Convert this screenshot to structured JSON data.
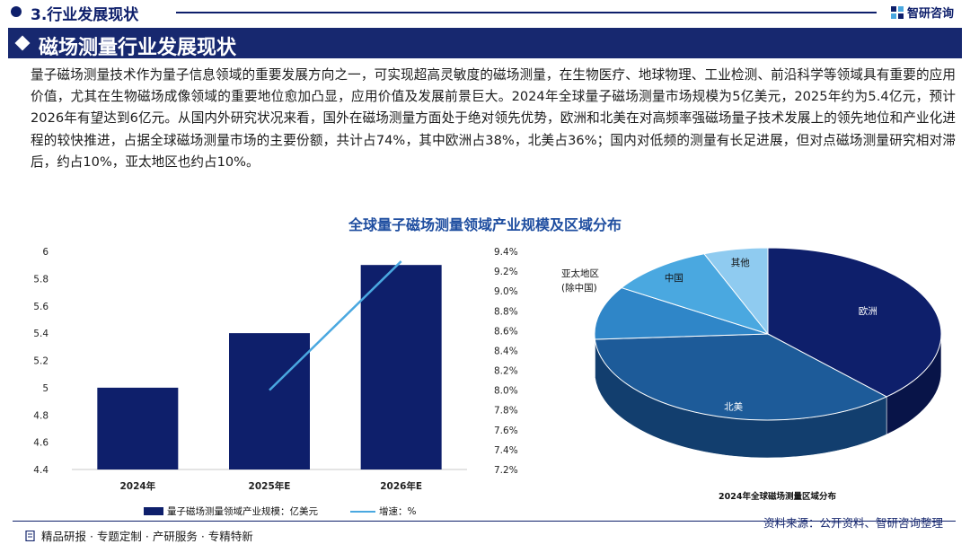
{
  "header": {
    "section_title": "3.行业发展现状",
    "logo_text": "智研咨询"
  },
  "banner": {
    "title": "磁场测量行业发展现状"
  },
  "intro": {
    "paragraph": "量子磁场测量技术作为量子信息领域的重要发展方向之一，可实现超高灵敏度的磁场测量，在生物医疗、地球物理、工业检测、前沿科学等领域具有重要的应用价值，尤其在生物磁场成像领域的重要地位愈加凸显，应用价值及发展前景巨大。2024年全球量子磁场测量市场规模为5亿美元，2025年约为5.4亿元，预计2026年有望达到6亿元。从国内外研究状况来看，国外在磁场测量方面处于绝对领先优势，欧洲和北美在对高频率强磁场量子技术发展上的领先地位和产业化进程的较快推进，占据全球磁场测量市场的主要份额，共计占74%，其中欧洲占38%，北美占36%；国内对低频的测量有长足进展，但对点磁场测量研究相对滞后，约占10%，亚太地区也约占10%。"
  },
  "figure_title": "全球量子磁场测量领域产业规模及区域分布",
  "chart_data": [
    {
      "type": "bar",
      "categories": [
        "2024年",
        "2025年E",
        "2026年E"
      ],
      "series": [
        {
          "name": "量子磁场测量领域产业规模：亿美元",
          "type": "bar",
          "axis": "left",
          "values": [
            5.0,
            5.4,
            5.9
          ],
          "color": "#0e1f6b"
        },
        {
          "name": "增速：%",
          "type": "line",
          "axis": "right",
          "values": [
            null,
            8.0,
            9.3
          ],
          "color": "#4aa8e0"
        }
      ],
      "y_left": {
        "min": 4.4,
        "max": 6.0,
        "ticks": [
          "4.4",
          "4.6",
          "4.8",
          "5",
          "5.2",
          "5.4",
          "5.6",
          "5.8",
          "6"
        ]
      },
      "y_right": {
        "min": 7.2,
        "max": 9.4,
        "ticks": [
          "7.2%",
          "7.4%",
          "7.6%",
          "7.8%",
          "8.0%",
          "8.2%",
          "8.4%",
          "8.6%",
          "8.8%",
          "9.0%",
          "9.2%",
          "9.4%"
        ]
      },
      "legend_position": "bottom"
    },
    {
      "type": "pie",
      "title": "2024年全球磁场测量区域分布",
      "slices": [
        {
          "label": "欧洲",
          "value": 38,
          "color": "#0e1f6b",
          "side": "#081448"
        },
        {
          "label": "北美",
          "value": 36,
          "color": "#1d5b99",
          "side": "#123e6e"
        },
        {
          "label": "亚太地区\n(除中国)",
          "value": 10,
          "color": "#2f86c8",
          "side": "#1f5f91"
        },
        {
          "label": "中国",
          "value": 10,
          "color": "#4aa8e0",
          "side": "#2f7fb0"
        },
        {
          "label": "其他",
          "value": 6,
          "color": "#8fcbf0",
          "side": "#5d9fc9"
        }
      ]
    }
  ],
  "footer": {
    "left": "精品研报 · 专题定制 · 产研服务 · 专精特新",
    "source": "资料来源：公开资料、智研咨询整理"
  }
}
